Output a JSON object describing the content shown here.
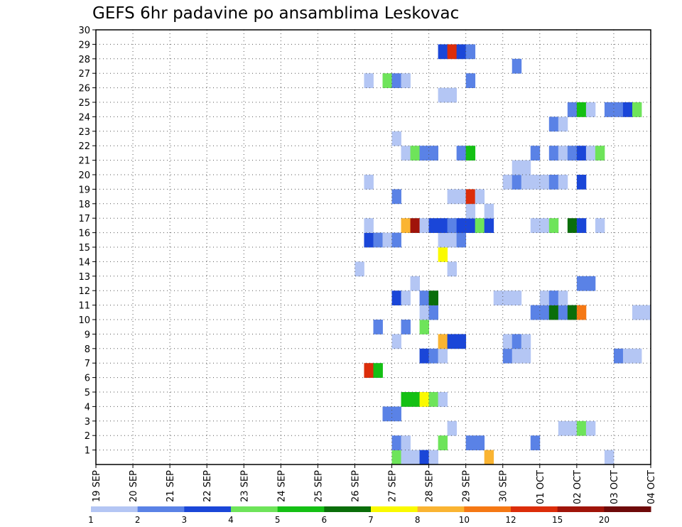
{
  "chart_data": {
    "type": "heatmap",
    "title": "GEFS 6hr padavine po ansamblima Leskovac",
    "xlabel": "",
    "ylabel": "",
    "x_ticks": [
      "19 SEP",
      "20 SEP",
      "21 SEP",
      "22 SEP",
      "23 SEP",
      "24 SEP",
      "25 SEP",
      "26 SEP",
      "27 SEP",
      "28 SEP",
      "29 SEP",
      "30 SEP",
      "01 OCT",
      "02 OCT",
      "03 OCT",
      "04 OCT"
    ],
    "xlim": [
      0,
      15
    ],
    "x_unit": "days from 19 SEP",
    "ylim": [
      0,
      30
    ],
    "y_ticks": [
      1,
      2,
      3,
      4,
      5,
      6,
      7,
      8,
      9,
      10,
      11,
      12,
      13,
      14,
      15,
      16,
      17,
      18,
      19,
      20,
      21,
      22,
      23,
      24,
      25,
      26,
      27,
      28,
      29,
      30
    ],
    "grid": true,
    "colorbar": {
      "labels": [
        "1",
        "2",
        "3",
        "4",
        "5",
        "6",
        "7",
        "8",
        "10",
        "12",
        "15",
        "20"
      ],
      "colors": [
        "#b4c6f4",
        "#5a82e6",
        "#1a46d8",
        "#6ee45a",
        "#14c014",
        "#0a6e0a",
        "#fafa00",
        "#fab432",
        "#f57814",
        "#dc2d0a",
        "#a0140a",
        "#6e0a0a"
      ]
    },
    "cells": [
      [
        8.0,
        0,
        "#6ee45a"
      ],
      [
        8.25,
        0,
        "#b4c6f4"
      ],
      [
        8.5,
        0,
        "#b4c6f4"
      ],
      [
        8.75,
        0,
        "#1a46d8"
      ],
      [
        9.0,
        0,
        "#b4c6f4"
      ],
      [
        10.5,
        0,
        "#fab432"
      ],
      [
        13.75,
        0,
        "#b4c6f4"
      ],
      [
        8.0,
        1,
        "#5a82e6"
      ],
      [
        8.25,
        1,
        "#b4c6f4"
      ],
      [
        9.25,
        1,
        "#6ee45a"
      ],
      [
        10.0,
        1,
        "#5a82e6"
      ],
      [
        10.25,
        1,
        "#5a82e6"
      ],
      [
        11.75,
        1,
        "#5a82e6"
      ],
      [
        9.5,
        2,
        "#b4c6f4"
      ],
      [
        12.5,
        2,
        "#b4c6f4"
      ],
      [
        12.75,
        2,
        "#b4c6f4"
      ],
      [
        13.0,
        2,
        "#6ee45a"
      ],
      [
        13.25,
        2,
        "#b4c6f4"
      ],
      [
        7.75,
        3,
        "#5a82e6"
      ],
      [
        8.0,
        3,
        "#5a82e6"
      ],
      [
        8.25,
        4,
        "#14c014"
      ],
      [
        8.5,
        4,
        "#14c014"
      ],
      [
        8.75,
        4,
        "#fafa00"
      ],
      [
        9.0,
        4,
        "#6ee45a"
      ],
      [
        9.25,
        4,
        "#b4c6f4"
      ],
      [
        7.25,
        6,
        "#dc2d0a"
      ],
      [
        7.5,
        6,
        "#14c014"
      ],
      [
        8.75,
        7,
        "#1a46d8"
      ],
      [
        9.0,
        7,
        "#5a82e6"
      ],
      [
        9.25,
        7,
        "#b4c6f4"
      ],
      [
        11.0,
        7,
        "#5a82e6"
      ],
      [
        11.25,
        7,
        "#b4c6f4"
      ],
      [
        11.5,
        7,
        "#b4c6f4"
      ],
      [
        14.0,
        7,
        "#5a82e6"
      ],
      [
        14.25,
        7,
        "#b4c6f4"
      ],
      [
        14.5,
        7,
        "#b4c6f4"
      ],
      [
        8.0,
        8,
        "#b4c6f4"
      ],
      [
        9.25,
        8,
        "#fab432"
      ],
      [
        9.5,
        8,
        "#1a46d8"
      ],
      [
        9.75,
        8,
        "#1a46d8"
      ],
      [
        11.0,
        8,
        "#b4c6f4"
      ],
      [
        11.25,
        8,
        "#5a82e6"
      ],
      [
        11.5,
        8,
        "#b4c6f4"
      ],
      [
        7.5,
        9,
        "#5a82e6"
      ],
      [
        8.25,
        9,
        "#5a82e6"
      ],
      [
        8.75,
        9,
        "#6ee45a"
      ],
      [
        8.75,
        10,
        "#b4c6f4"
      ],
      [
        9.0,
        10,
        "#5a82e6"
      ],
      [
        11.75,
        10,
        "#5a82e6"
      ],
      [
        12.0,
        10,
        "#5a82e6"
      ],
      [
        12.25,
        10,
        "#0a6e0a"
      ],
      [
        12.5,
        10,
        "#5a82e6"
      ],
      [
        12.75,
        10,
        "#0a6e0a"
      ],
      [
        13.0,
        10,
        "#f57814"
      ],
      [
        14.5,
        10,
        "#b4c6f4"
      ],
      [
        14.75,
        10,
        "#b4c6f4"
      ],
      [
        8.0,
        11,
        "#1a46d8"
      ],
      [
        8.25,
        11,
        "#b4c6f4"
      ],
      [
        8.75,
        11,
        "#5a82e6"
      ],
      [
        9.0,
        11,
        "#0a6e0a"
      ],
      [
        10.75,
        11,
        "#b4c6f4"
      ],
      [
        11.0,
        11,
        "#b4c6f4"
      ],
      [
        11.25,
        11,
        "#b4c6f4"
      ],
      [
        12.0,
        11,
        "#b4c6f4"
      ],
      [
        12.25,
        11,
        "#5a82e6"
      ],
      [
        12.5,
        11,
        "#b4c6f4"
      ],
      [
        8.5,
        12,
        "#b4c6f4"
      ],
      [
        13.0,
        12,
        "#5a82e6"
      ],
      [
        13.25,
        12,
        "#5a82e6"
      ],
      [
        7.0,
        13,
        "#b4c6f4"
      ],
      [
        9.5,
        13,
        "#b4c6f4"
      ],
      [
        9.25,
        14,
        "#fafa00"
      ],
      [
        7.25,
        15,
        "#1a46d8"
      ],
      [
        7.5,
        15,
        "#5a82e6"
      ],
      [
        7.75,
        15,
        "#b4c6f4"
      ],
      [
        8.0,
        15,
        "#5a82e6"
      ],
      [
        9.25,
        15,
        "#b4c6f4"
      ],
      [
        9.5,
        15,
        "#b4c6f4"
      ],
      [
        9.75,
        15,
        "#5a82e6"
      ],
      [
        7.25,
        16,
        "#b4c6f4"
      ],
      [
        8.25,
        16,
        "#fab432"
      ],
      [
        8.5,
        16,
        "#a0140a"
      ],
      [
        8.75,
        16,
        "#b4c6f4"
      ],
      [
        9.0,
        16,
        "#1a46d8"
      ],
      [
        9.25,
        16,
        "#1a46d8"
      ],
      [
        9.5,
        16,
        "#5a82e6"
      ],
      [
        9.75,
        16,
        "#1a46d8"
      ],
      [
        10.0,
        16,
        "#1a46d8"
      ],
      [
        10.25,
        16,
        "#6ee45a"
      ],
      [
        10.5,
        16,
        "#1a46d8"
      ],
      [
        11.75,
        16,
        "#b4c6f4"
      ],
      [
        12.0,
        16,
        "#b4c6f4"
      ],
      [
        12.25,
        16,
        "#6ee45a"
      ],
      [
        12.75,
        16,
        "#0a6e0a"
      ],
      [
        13.0,
        16,
        "#1a46d8"
      ],
      [
        13.5,
        16,
        "#b4c6f4"
      ],
      [
        10.0,
        17,
        "#b4c6f4"
      ],
      [
        10.5,
        17,
        "#b4c6f4"
      ],
      [
        8.0,
        18,
        "#5a82e6"
      ],
      [
        9.5,
        18,
        "#b4c6f4"
      ],
      [
        9.75,
        18,
        "#b4c6f4"
      ],
      [
        10.0,
        18,
        "#dc2d0a"
      ],
      [
        10.25,
        18,
        "#b4c6f4"
      ],
      [
        7.25,
        19,
        "#b4c6f4"
      ],
      [
        11.0,
        19,
        "#b4c6f4"
      ],
      [
        11.25,
        19,
        "#5a82e6"
      ],
      [
        11.5,
        19,
        "#b4c6f4"
      ],
      [
        11.75,
        19,
        "#b4c6f4"
      ],
      [
        12.0,
        19,
        "#b4c6f4"
      ],
      [
        12.25,
        19,
        "#5a82e6"
      ],
      [
        12.5,
        19,
        "#b4c6f4"
      ],
      [
        13.0,
        19,
        "#1a46d8"
      ],
      [
        11.25,
        20,
        "#b4c6f4"
      ],
      [
        11.5,
        20,
        "#b4c6f4"
      ],
      [
        8.25,
        21,
        "#b4c6f4"
      ],
      [
        8.5,
        21,
        "#6ee45a"
      ],
      [
        8.75,
        21,
        "#5a82e6"
      ],
      [
        9.0,
        21,
        "#5a82e6"
      ],
      [
        9.75,
        21,
        "#5a82e6"
      ],
      [
        10.0,
        21,
        "#14c014"
      ],
      [
        11.75,
        21,
        "#5a82e6"
      ],
      [
        12.25,
        21,
        "#5a82e6"
      ],
      [
        12.5,
        21,
        "#b4c6f4"
      ],
      [
        12.75,
        21,
        "#5a82e6"
      ],
      [
        13.0,
        21,
        "#1a46d8"
      ],
      [
        13.25,
        21,
        "#b4c6f4"
      ],
      [
        13.5,
        21,
        "#6ee45a"
      ],
      [
        8.0,
        22,
        "#b4c6f4"
      ],
      [
        12.25,
        23,
        "#5a82e6"
      ],
      [
        12.5,
        23,
        "#b4c6f4"
      ],
      [
        12.75,
        24,
        "#5a82e6"
      ],
      [
        13.0,
        24,
        "#14c014"
      ],
      [
        13.25,
        24,
        "#b4c6f4"
      ],
      [
        13.75,
        24,
        "#5a82e6"
      ],
      [
        14.0,
        24,
        "#5a82e6"
      ],
      [
        14.25,
        24,
        "#1a46d8"
      ],
      [
        14.5,
        24,
        "#6ee45a"
      ],
      [
        9.25,
        25,
        "#b4c6f4"
      ],
      [
        9.5,
        25,
        "#b4c6f4"
      ],
      [
        7.25,
        26,
        "#b4c6f4"
      ],
      [
        7.75,
        26,
        "#6ee45a"
      ],
      [
        8.0,
        26,
        "#5a82e6"
      ],
      [
        8.25,
        26,
        "#b4c6f4"
      ],
      [
        10.0,
        26,
        "#5a82e6"
      ],
      [
        11.25,
        27,
        "#5a82e6"
      ],
      [
        9.25,
        28,
        "#1a46d8"
      ],
      [
        9.5,
        28,
        "#dc2d0a"
      ],
      [
        9.75,
        28,
        "#1a46d8"
      ],
      [
        10.0,
        28,
        "#5a82e6"
      ]
    ]
  }
}
